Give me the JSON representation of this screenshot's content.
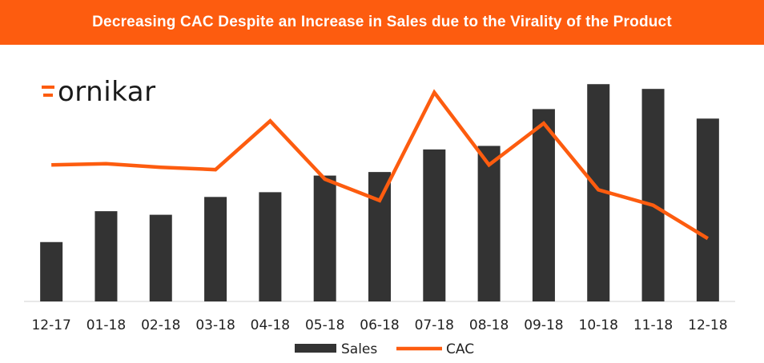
{
  "title": "Decreasing CAC Despite an Increase in Sales due to the Virality of the Product",
  "logo": "ornikar",
  "colors": {
    "accent": "#fd5c0f",
    "bars": "#333333",
    "title_text": "#ffffff"
  },
  "chart_data": {
    "type": "bar",
    "categories": [
      "12-17",
      "01-18",
      "02-18",
      "03-18",
      "04-18",
      "05-18",
      "06-18",
      "07-18",
      "08-18",
      "09-18",
      "10-18",
      "11-18",
      "12-18"
    ],
    "series": [
      {
        "name": "Sales",
        "type": "bar",
        "color": "#333333",
        "values": [
          25,
          38,
          36.5,
          44,
          46,
          53,
          54.5,
          64,
          65.5,
          81,
          91.5,
          89.5,
          77
        ]
      },
      {
        "name": "CAC",
        "type": "line",
        "color": "#fd5c0f",
        "values": [
          57.5,
          58,
          56.5,
          55.5,
          76,
          51.5,
          42.5,
          88,
          57.5,
          75,
          47,
          40.5,
          26.5
        ]
      }
    ],
    "ylim": [
      0,
      100
    ],
    "xlabel": "",
    "ylabel": "",
    "grid": false,
    "legend": "bottom"
  }
}
